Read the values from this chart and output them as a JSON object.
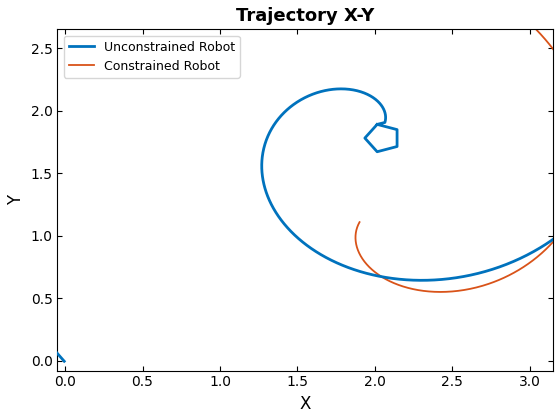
{
  "title": "Trajectory X-Y",
  "xlabel": "X",
  "ylabel": "Y",
  "xlim": [
    -0.05,
    3.15
  ],
  "ylim": [
    -0.08,
    2.65
  ],
  "xticks": [
    0,
    0.5,
    1.0,
    1.5,
    2.0,
    2.5,
    3.0
  ],
  "yticks": [
    0,
    0.5,
    1.0,
    1.5,
    2.0,
    2.5
  ],
  "unconstrained_color": "#0072BD",
  "constrained_color": "#D95319",
  "unconstrained_linewidth": 2.0,
  "constrained_linewidth": 1.3,
  "legend_labels": [
    "Unconstrained Robot",
    "Constrained Robot"
  ],
  "background_color": "#ffffff"
}
